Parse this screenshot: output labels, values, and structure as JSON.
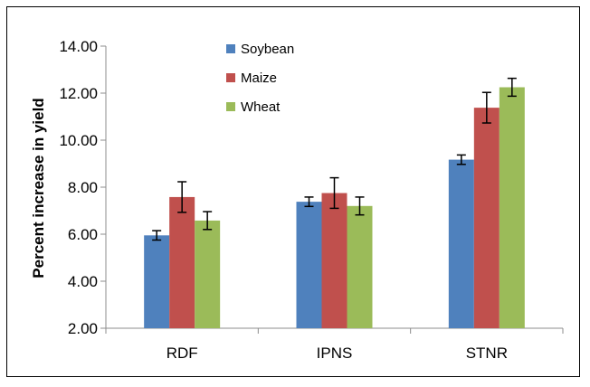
{
  "chart_data": {
    "type": "bar",
    "title": "",
    "xlabel": "",
    "ylabel": "Percent increase in yield",
    "categories": [
      "RDF",
      "IPNS",
      "STNR"
    ],
    "ylim": [
      2.0,
      14.0
    ],
    "yticks": [
      "2.00",
      "4.00",
      "6.00",
      "8.00",
      "10.00",
      "12.00",
      "14.00"
    ],
    "ytick_values": [
      2,
      4,
      6,
      8,
      10,
      12,
      14
    ],
    "grid": false,
    "legend_position": "top-center",
    "series": [
      {
        "name": "Soybean",
        "color": "#4F81BD",
        "values": [
          5.95,
          7.38,
          9.17
        ],
        "errors": [
          0.2,
          0.2,
          0.2
        ]
      },
      {
        "name": "Maize",
        "color": "#C0504D",
        "values": [
          7.58,
          7.75,
          11.38
        ],
        "errors": [
          0.65,
          0.65,
          0.65
        ]
      },
      {
        "name": "Wheat",
        "color": "#9BBB59",
        "values": [
          6.58,
          7.2,
          12.25
        ],
        "errors": [
          0.38,
          0.38,
          0.38
        ]
      }
    ]
  }
}
